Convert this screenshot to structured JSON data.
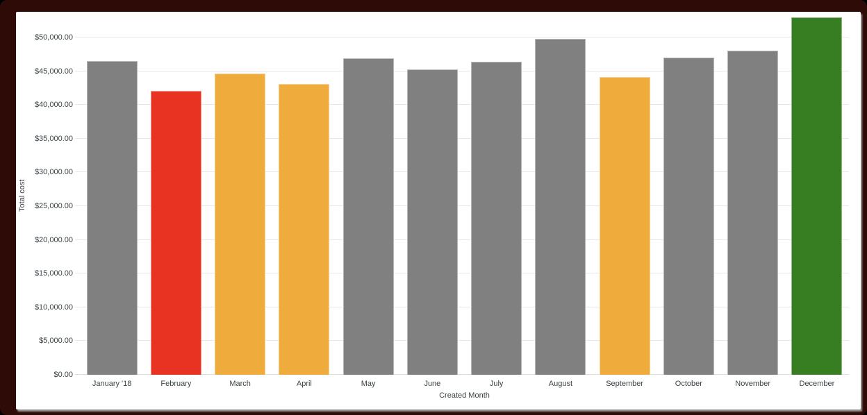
{
  "chart_data": {
    "type": "bar",
    "title": "",
    "xlabel": "Created Month",
    "ylabel": "Total cost",
    "categories": [
      "January '18",
      "February",
      "March",
      "April",
      "May",
      "June",
      "July",
      "August",
      "September",
      "October",
      "November",
      "December"
    ],
    "values": [
      46550,
      42100,
      44700,
      43100,
      46900,
      45250,
      46400,
      49800,
      44200,
      47050,
      48100,
      53000
    ],
    "bar_colors": [
      "#808080",
      "#E83323",
      "#F0AB3D",
      "#F0AB3D",
      "#808080",
      "#808080",
      "#808080",
      "#808080",
      "#F0AB3D",
      "#808080",
      "#808080",
      "#377D22"
    ],
    "bar_names": [
      "january",
      "february",
      "march",
      "april",
      "may",
      "june",
      "july",
      "august",
      "september",
      "october",
      "november",
      "december"
    ],
    "y_ticks": [
      {
        "value": 0,
        "label": "$0.00"
      },
      {
        "value": 5000,
        "label": "$5,000.00"
      },
      {
        "value": 10000,
        "label": "$10,000.00"
      },
      {
        "value": 15000,
        "label": "$15,000.00"
      },
      {
        "value": 20000,
        "label": "$20,000.00"
      },
      {
        "value": 25000,
        "label": "$25,000.00"
      },
      {
        "value": 30000,
        "label": "$30,000.00"
      },
      {
        "value": 35000,
        "label": "$35,000.00"
      },
      {
        "value": 40000,
        "label": "$40,000.00"
      },
      {
        "value": 45000,
        "label": "$45,000.00"
      },
      {
        "value": 50000,
        "label": "$50,000.00"
      }
    ],
    "ylim": [
      0,
      53100
    ],
    "grid": true,
    "legend": false
  },
  "colors": {
    "bar_default": "#808080",
    "bar_red": "#E83323",
    "bar_orange": "#F0AB3D",
    "bar_green": "#377D22",
    "gridline": "#E8E8E8",
    "axis_text": "#3A4245",
    "frame": "#2E0B07",
    "card_background": "#FFFFFF"
  }
}
